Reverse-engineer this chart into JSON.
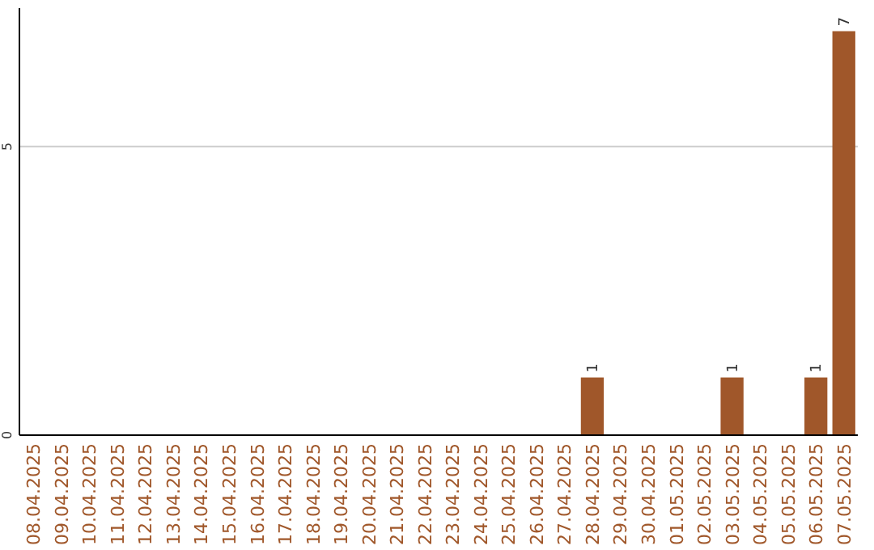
{
  "chart_data": {
    "type": "bar",
    "categories": [
      "08.04.2025",
      "09.04.2025",
      "10.04.2025",
      "11.04.2025",
      "12.04.2025",
      "13.04.2025",
      "14.04.2025",
      "15.04.2025",
      "16.04.2025",
      "17.04.2025",
      "18.04.2025",
      "19.04.2025",
      "20.04.2025",
      "21.04.2025",
      "22.04.2025",
      "23.04.2025",
      "24.04.2025",
      "25.04.2025",
      "26.04.2025",
      "27.04.2025",
      "28.04.2025",
      "29.04.2025",
      "30.04.2025",
      "01.05.2025",
      "02.05.2025",
      "03.05.2025",
      "04.05.2025",
      "05.05.2025",
      "06.05.2025",
      "07.05.2025"
    ],
    "values": [
      0,
      0,
      0,
      0,
      0,
      0,
      0,
      0,
      0,
      0,
      0,
      0,
      0,
      0,
      0,
      0,
      0,
      0,
      0,
      0,
      1,
      0,
      0,
      0,
      0,
      1,
      0,
      0,
      1,
      7
    ],
    "value_labels": [
      null,
      null,
      null,
      null,
      null,
      null,
      null,
      null,
      null,
      null,
      null,
      null,
      null,
      null,
      null,
      null,
      null,
      null,
      null,
      null,
      "1",
      null,
      null,
      null,
      null,
      "1",
      null,
      null,
      "1",
      "7"
    ],
    "color": "#a0572a",
    "ylim": [
      0,
      7.4
    ],
    "yticks": [
      0,
      {
        "value": 5,
        "label": "5"
      }
    ],
    "grid": "y"
  }
}
